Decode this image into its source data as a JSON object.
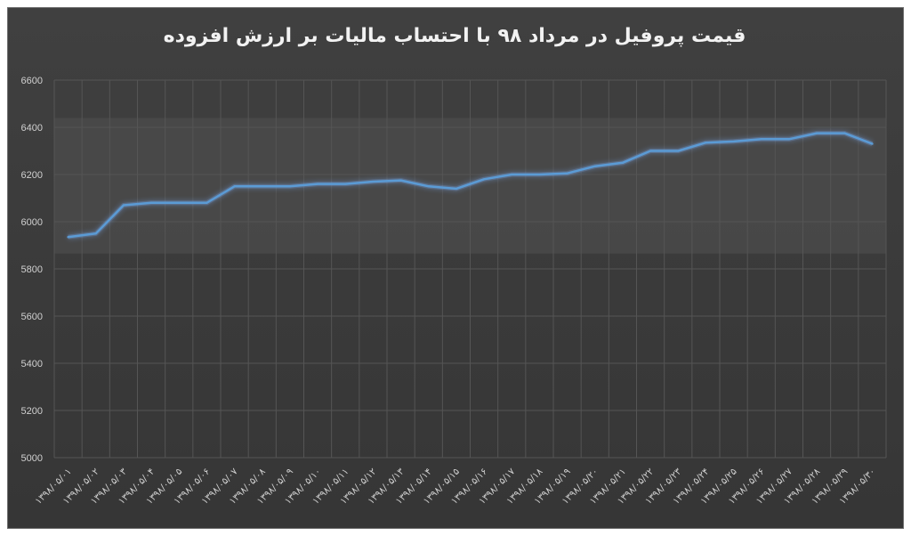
{
  "chart_data": {
    "type": "line",
    "title": "قیمت پروفیل در مرداد ۹۸ با احتساب مالیات بر ارزش افزوده",
    "xlabel": "",
    "ylabel": "",
    "ylim": [
      5000,
      6600
    ],
    "y_ticks": [
      5000,
      5200,
      5400,
      5600,
      5800,
      6000,
      6200,
      6400,
      6600
    ],
    "grid": true,
    "legend": "none",
    "categories": [
      "۱۳۹۸/۰۵/۰۱",
      "۱۳۹۸/۰۵/۰۲",
      "۱۳۹۸/۰۵/۰۳",
      "۱۳۹۸/۰۵/۰۴",
      "۱۳۹۸/۰۵/۰۵",
      "۱۳۹۸/۰۵/۰۶",
      "۱۳۹۸/۰۵/۰۷",
      "۱۳۹۸/۰۵/۰۸",
      "۱۳۹۸/۰۵/۰۹",
      "۱۳۹۸/۰۵/۱۰",
      "۱۳۹۸/۰۵/۱۱",
      "۱۳۹۸/۰۵/۱۲",
      "۱۳۹۸/۰۵/۱۳",
      "۱۳۹۸/۰۵/۱۴",
      "۱۳۹۸/۰۵/۱۵",
      "۱۳۹۸/۰۵/۱۶",
      "۱۳۹۸/۰۵/۱۷",
      "۱۳۹۸/۰۵/۱۸",
      "۱۳۹۸/۰۵/۱۹",
      "۱۳۹۸/۰۵/۲۰",
      "۱۳۹۸/۰۵/۲۱",
      "۱۳۹۸/۰۵/۲۲",
      "۱۳۹۸/۰۵/۲۳",
      "۱۳۹۸/۰۵/۲۴",
      "۱۳۹۸/۰۵/۲۵",
      "۱۳۹۸/۰۵/۲۶",
      "۱۳۹۸/۰۵/۲۷",
      "۱۳۹۸/۰۵/۲۸",
      "۱۳۹۸/۰۵/۲۹",
      "۱۳۹۸/۰۵/۳۰"
    ],
    "values": [
      5935,
      5950,
      6070,
      6080,
      6080,
      6080,
      6150,
      6150,
      6150,
      6160,
      6160,
      6170,
      6175,
      6150,
      6140,
      6180,
      6200,
      6200,
      6205,
      6235,
      6250,
      6300,
      6300,
      6335,
      6340,
      6350,
      6350,
      6375,
      6375,
      6330
    ],
    "highlight_band": [
      5865,
      6440
    ],
    "colors": {
      "line": "#5b9bd5",
      "glow": "#7fb3ff",
      "band": "#4a4a4a",
      "grid": "#555555",
      "text": "#d0d0d0"
    }
  }
}
